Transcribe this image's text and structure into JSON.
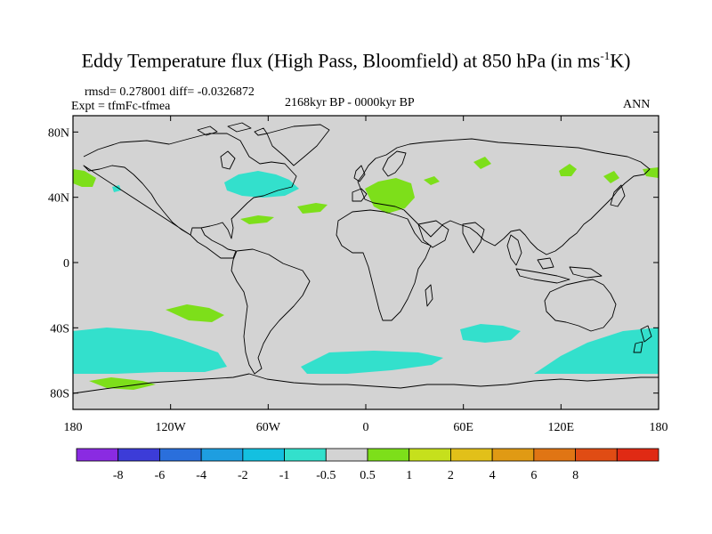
{
  "header": {
    "title_main": "Eddy Temperature flux (High Pass, Bloomfield) at 850 hPa (in ms",
    "title_sup": "-1",
    "title_end": "K)",
    "stats": "rmsd= 0.278001 diff= -0.0326872",
    "experiment": "Expt = tfmFc-tfmea",
    "period": "2168kyr BP - 0000kyr BP",
    "season": "ANN"
  },
  "map": {
    "lon_ticks": [
      {
        "lon": -180,
        "label": "180"
      },
      {
        "lon": -120,
        "label": "120W"
      },
      {
        "lon": -60,
        "label": "60W"
      },
      {
        "lon": 0,
        "label": "0"
      },
      {
        "lon": 60,
        "label": "60E"
      },
      {
        "lon": 120,
        "label": "120E"
      },
      {
        "lon": 180,
        "label": "180"
      }
    ],
    "lat_ticks": [
      {
        "lat": 80,
        "label": "80N"
      },
      {
        "lat": 40,
        "label": "40N"
      },
      {
        "lat": 0,
        "label": "0"
      },
      {
        "lat": -40,
        "label": "40S"
      },
      {
        "lat": -80,
        "label": "80S"
      }
    ],
    "lat_range": [
      -90,
      90
    ],
    "lon_range": [
      -180,
      180
    ],
    "background_color": "#d3d3d3"
  },
  "colorbar": {
    "colors": [
      "#8a2be2",
      "#3c3cd8",
      "#2a6fdc",
      "#1e9ee0",
      "#14c0e0",
      "#33e0cc",
      "#d3d3d3",
      "#7ddf1a",
      "#c6e01c",
      "#e2c019",
      "#e09a14",
      "#e07514",
      "#e04c14",
      "#e02a14"
    ],
    "labels": [
      "-8",
      "-6",
      "-4",
      "-2",
      "-1",
      "-0.5",
      "0.5",
      "1",
      "2",
      "4",
      "6",
      "8"
    ]
  }
}
